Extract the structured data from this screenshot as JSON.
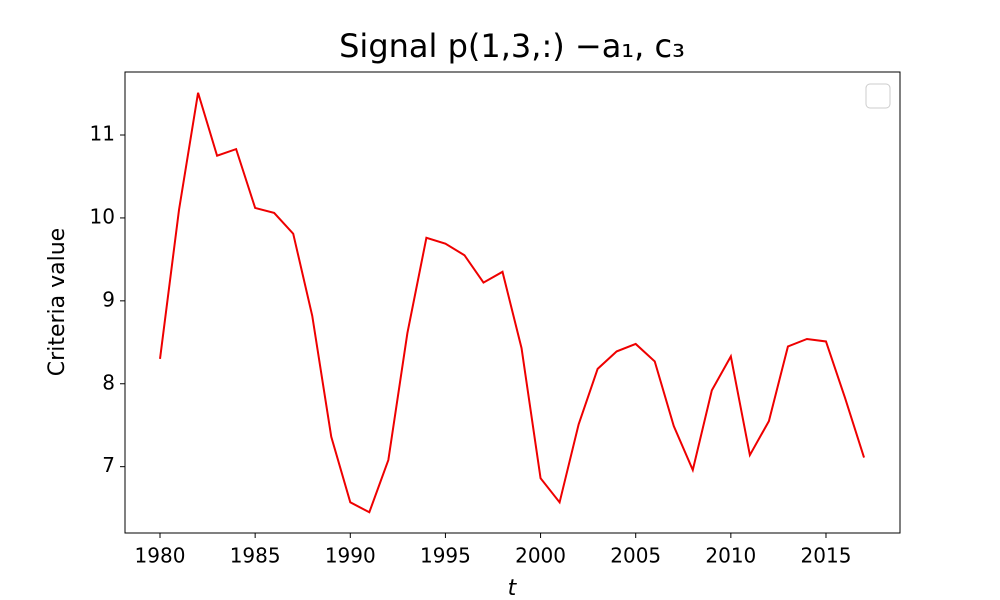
{
  "chart_data": {
    "type": "line",
    "title": "Signal p(1,3,:) −a₁, c₃",
    "xlabel": "t",
    "ylabel": "Criteria value",
    "x": [
      1980,
      1981,
      1982,
      1983,
      1984,
      1985,
      1986,
      1987,
      1988,
      1989,
      1990,
      1991,
      1992,
      1993,
      1994,
      1995,
      1996,
      1997,
      1998,
      1999,
      2000,
      2001,
      2002,
      2003,
      2004,
      2005,
      2006,
      2007,
      2008,
      2009,
      2010,
      2011,
      2012,
      2013,
      2014,
      2015,
      2016,
      2017
    ],
    "series": [
      {
        "color": "#ee0000",
        "values": [
          8.3,
          10.1,
          11.51,
          10.75,
          10.83,
          10.12,
          10.06,
          9.81,
          8.82,
          7.36,
          6.57,
          6.45,
          7.08,
          8.61,
          9.76,
          9.69,
          9.55,
          9.22,
          9.35,
          8.43,
          6.86,
          6.57,
          7.51,
          8.18,
          8.39,
          8.48,
          8.27,
          7.49,
          6.96,
          7.92,
          8.33,
          7.14,
          7.55,
          8.45,
          8.54,
          8.51,
          7.83,
          7.11
        ]
      }
    ],
    "xlim": [
      1978.16,
      2018.89
    ],
    "xticks": [
      1980,
      1985,
      1990,
      1995,
      2000,
      2005,
      2010,
      2015
    ],
    "ylim": [
      6.2,
      11.76
    ],
    "yticks": [
      7,
      8,
      9,
      10,
      11
    ],
    "legend": "upper right"
  }
}
